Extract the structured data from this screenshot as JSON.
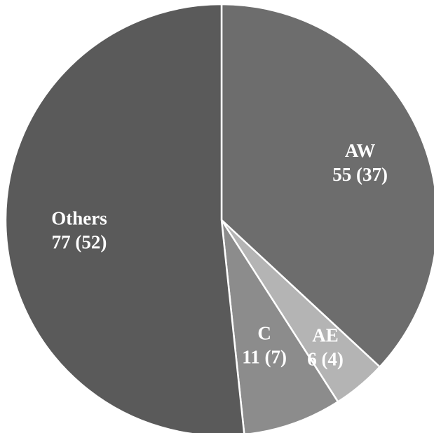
{
  "chart_data": {
    "type": "pie",
    "start_angle_deg": 0,
    "direction": "clockwise",
    "slices": [
      {
        "label": "AW",
        "value": 55,
        "percent": 37,
        "value_text": "55 (37)",
        "color": "#6d6d6d"
      },
      {
        "label": "AE",
        "value": 6,
        "percent": 4,
        "value_text": "6 (4)",
        "color": "#b4b4b4"
      },
      {
        "label": "C",
        "value": 11,
        "percent": 7,
        "value_text": "11 (7)",
        "color": "#8c8c8c"
      },
      {
        "label": "Others",
        "value": 77,
        "percent": 52,
        "value_text": "77 (52)",
        "color": "#5a5a5a"
      }
    ]
  }
}
